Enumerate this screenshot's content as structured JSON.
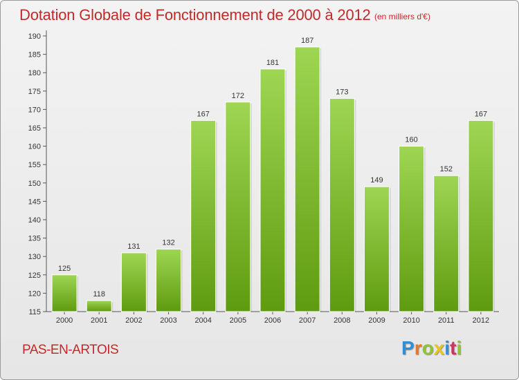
{
  "header": {
    "title": "Dotation Globale de Fonctionnement de 2000 à 2012",
    "subtitle": "(en milliers d'€)"
  },
  "footer": {
    "commune": "PAS-EN-ARTOIS",
    "logo_text": "Proxiti",
    "logo_colors": [
      "#2e8fd8",
      "#e8772a",
      "#8fc43a",
      "#e8c51e",
      "#2e8fd8",
      "#d62f5f",
      "#8fc43a"
    ]
  },
  "colors": {
    "bar_top": "#9ed653",
    "bar_bottom": "#5f9b10",
    "text_red": "#c4292a"
  },
  "chart_data": {
    "type": "bar",
    "categories": [
      "2000",
      "2001",
      "2002",
      "2003",
      "2004",
      "2005",
      "2006",
      "2007",
      "2008",
      "2009",
      "2010",
      "2011",
      "2012"
    ],
    "values": [
      125,
      118,
      131,
      132,
      167,
      172,
      181,
      187,
      173,
      149,
      160,
      152,
      167
    ],
    "data_labels": [
      "125",
      "118",
      "131",
      "132",
      "167",
      "172",
      "181",
      "187",
      "173",
      "149",
      "160",
      "152",
      "167"
    ],
    "title": "Dotation Globale de Fonctionnement de 2000 à 2012",
    "subtitle": "(en milliers d'€)",
    "xlabel": "",
    "ylabel": "",
    "ylim": [
      115,
      190
    ],
    "yticks": [
      "115",
      "120",
      "125",
      "130",
      "135",
      "140",
      "145",
      "150",
      "155",
      "160",
      "165",
      "170",
      "175",
      "180",
      "185",
      "190"
    ],
    "grid": false,
    "legend": "none"
  }
}
